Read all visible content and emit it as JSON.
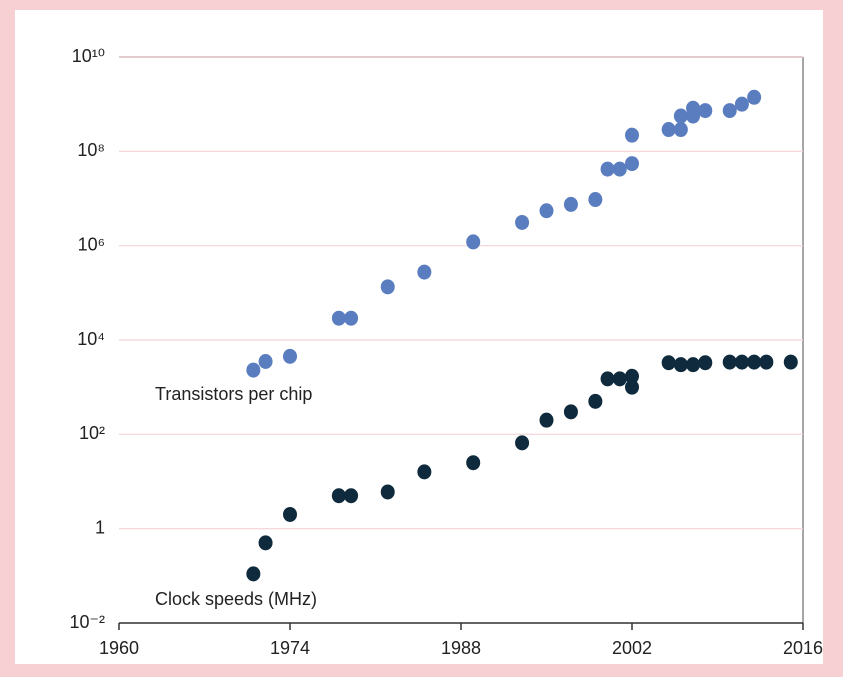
{
  "chart_data": {
    "type": "scatter",
    "log_y": true,
    "grid": true,
    "xlim": [
      1960,
      2016
    ],
    "xticks": [
      1960,
      1974,
      1988,
      2002,
      2016
    ],
    "ylim": [
      0.01,
      10000000000
    ],
    "yticks": [
      {
        "value": 0.01,
        "label": "10⁻²"
      },
      1,
      {
        "value": 100,
        "label": "10²"
      },
      {
        "value": 10000,
        "label": "10⁴"
      },
      {
        "value": 1000000,
        "label": "10⁶"
      },
      {
        "value": 100000000,
        "label": "10⁸"
      },
      {
        "value": 10000000000,
        "label": "10¹⁰"
      }
    ],
    "series": [
      {
        "name": "Transistors per chip",
        "color": "#5a7dc0",
        "x": [
          1971,
          1972,
          1974,
          1978,
          1979,
          1982,
          1985,
          1989,
          1993,
          1995,
          1997,
          1999,
          2000,
          2001,
          2002,
          2002,
          2005,
          2006,
          2006,
          2007,
          2007,
          2008,
          2010,
          2011,
          2012
        ],
        "values": [
          2300,
          3500,
          4500,
          29000,
          29000,
          134000,
          275000,
          1200000,
          3100000,
          5500000,
          7500000,
          9500000,
          42000000,
          42000000,
          55000000,
          220000000,
          290000000,
          290000000,
          560000000,
          560000000,
          820000000,
          730000000,
          730000000,
          1000000000,
          1400000000
        ]
      },
      {
        "name": "Clock speeds (MHz)",
        "color": "#0e2a3c",
        "x": [
          1971,
          1972,
          1974,
          1978,
          1979,
          1982,
          1985,
          1989,
          1993,
          1995,
          1997,
          1999,
          2000,
          2001,
          2002,
          2002,
          2005,
          2006,
          2007,
          2008,
          2010,
          2011,
          2012,
          2013,
          2015
        ],
        "values": [
          0.11,
          0.5,
          2,
          5,
          5,
          6,
          16,
          25,
          66,
          200,
          300,
          500,
          1500,
          1500,
          1700,
          1000,
          3300,
          3000,
          3000,
          3300,
          3400,
          3400,
          3400,
          3400,
          3400
        ]
      }
    ]
  }
}
